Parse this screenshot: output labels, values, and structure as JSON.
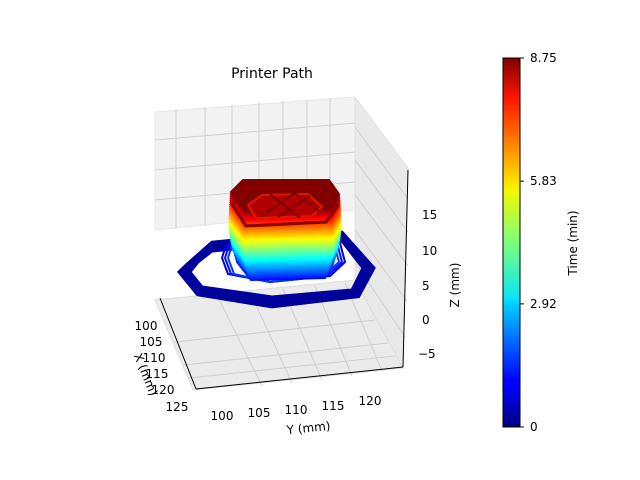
{
  "chart_data": {
    "type": "line",
    "title": "Printer Path",
    "xlabel": "X (mm)",
    "ylabel": "Y (mm)",
    "zlabel": "Z (mm)",
    "x_ticks": [
      "100",
      "105",
      "110",
      "115",
      "120",
      "125"
    ],
    "y_ticks": [
      "100",
      "105",
      "110",
      "115",
      "120"
    ],
    "z_ticks": [
      "15",
      "10",
      "5",
      "0",
      "−5"
    ],
    "grid": true,
    "colormap": "jet",
    "colorbar": {
      "label": "Time (min)",
      "ticks": [
        "0",
        "2.92",
        "5.83",
        "8.75"
      ],
      "range": [
        0,
        8.75
      ]
    },
    "series": [
      {
        "kind": "skirt-loops",
        "x_range": [
          102,
          119
        ],
        "y_range": [
          101,
          121
        ],
        "z": 0,
        "time": 0.25
      },
      {
        "kind": "printed-object",
        "z_range": [
          0,
          9.5
        ],
        "time_range": [
          1.2,
          8.75
        ]
      }
    ]
  }
}
